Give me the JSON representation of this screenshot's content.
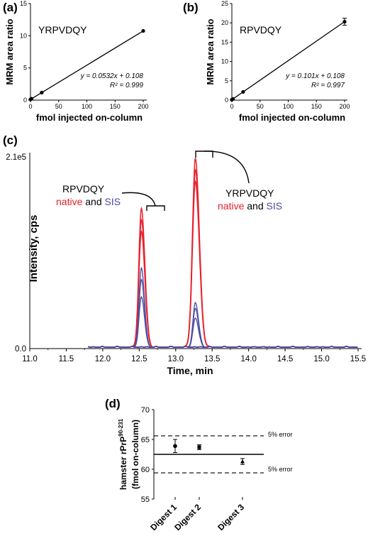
{
  "chart_data": [
    {
      "panel": "(a)",
      "type": "scatter",
      "peptide": "YRPVDQY",
      "xlabel": "fmol injected on-column",
      "ylabel": "MRM area ratio",
      "xlim": [
        0,
        200
      ],
      "ylim": [
        0,
        15
      ],
      "xticks": [
        "0",
        "50",
        "100",
        "150",
        "200"
      ],
      "yticks": [
        "0",
        "5",
        "10",
        "15"
      ],
      "points": [
        {
          "x": 0,
          "y": 0.11
        },
        {
          "x": 2,
          "y": 0.21
        },
        {
          "x": 20,
          "y": 1.17
        },
        {
          "x": 200,
          "y": 10.75
        }
      ],
      "fit": {
        "slope": 0.0532,
        "intercept": 0.108
      },
      "equation": "y = 0.0532x + 0.108",
      "r2": "R² = 0.999"
    },
    {
      "panel": "(b)",
      "type": "scatter",
      "peptide": "RPVDQY",
      "xlabel": "fmol injected on-column",
      "ylabel": "MRM area ratio",
      "xlim": [
        0,
        200
      ],
      "ylim": [
        0,
        25
      ],
      "xticks": [
        "0",
        "50",
        "100",
        "150",
        "200"
      ],
      "yticks": [
        "0",
        "5",
        "10",
        "15",
        "20",
        "25"
      ],
      "points": [
        {
          "x": 0,
          "y": 0.11
        },
        {
          "x": 2,
          "y": 0.31
        },
        {
          "x": 20,
          "y": 2.13
        },
        {
          "x": 200,
          "y": 20.3,
          "err": 0.9
        }
      ],
      "fit": {
        "slope": 0.101,
        "intercept": 0.108
      },
      "equation": "y = 0.101x + 0.108",
      "r2": "R² = 0.997"
    },
    {
      "panel": "(c)",
      "type": "line",
      "xlabel": "Time, min",
      "ylabel": "Intensity, cps",
      "xlim": [
        11.0,
        15.5
      ],
      "ymax_label": "2.1e5",
      "ymin_label": "0.0",
      "xticks": [
        "11.0",
        "11.5",
        "12.0",
        "12.5",
        "13.0",
        "13.5",
        "14.0",
        "14.5",
        "15.0",
        "15.5"
      ],
      "annotation_1": {
        "peptide": "RPVDQY",
        "native": "native",
        "and": "and",
        "sis": "SIS"
      },
      "annotation_2": {
        "peptide": "YRPVDQY",
        "native": "native",
        "and": "and",
        "sis": "SIS"
      },
      "colors": {
        "native": "#e8202a",
        "sis": "#4a4aa0"
      },
      "peaks": {
        "native": [
          {
            "rt": 12.53,
            "heights": [
              0.72,
              0.66,
              0.6
            ],
            "sigma": 0.035
          },
          {
            "rt": 13.27,
            "heights": [
              0.98,
              0.92,
              0.86
            ],
            "sigma": 0.04
          }
        ],
        "sis": [
          {
            "rt": 12.53,
            "heights": [
              0.41,
              0.35,
              0.26
            ],
            "sigma": 0.032
          },
          {
            "rt": 13.27,
            "heights": [
              0.23,
              0.2,
              0.15
            ],
            "sigma": 0.033
          }
        ]
      }
    },
    {
      "panel": "(d)",
      "type": "scatter",
      "ylabel_line1": "hamster rPrP",
      "ylabel_sup": "90-231",
      "ylabel_line2": "(fmol on-column)",
      "ylim": [
        55,
        70
      ],
      "yticks": [
        "55",
        "60",
        "65",
        "70"
      ],
      "categories": [
        "Digest 1",
        "Digest 2",
        "Digest 3"
      ],
      "values": [
        63.9,
        63.7,
        61.3
      ],
      "errors": [
        1.1,
        0.4,
        0.5
      ],
      "markers": [
        "circle",
        "square",
        "triangle"
      ],
      "mean_line": 62.5,
      "upper_error_line": 65.6,
      "lower_error_line": 59.4,
      "upper_label": "5% error",
      "lower_label": "5% error"
    }
  ]
}
